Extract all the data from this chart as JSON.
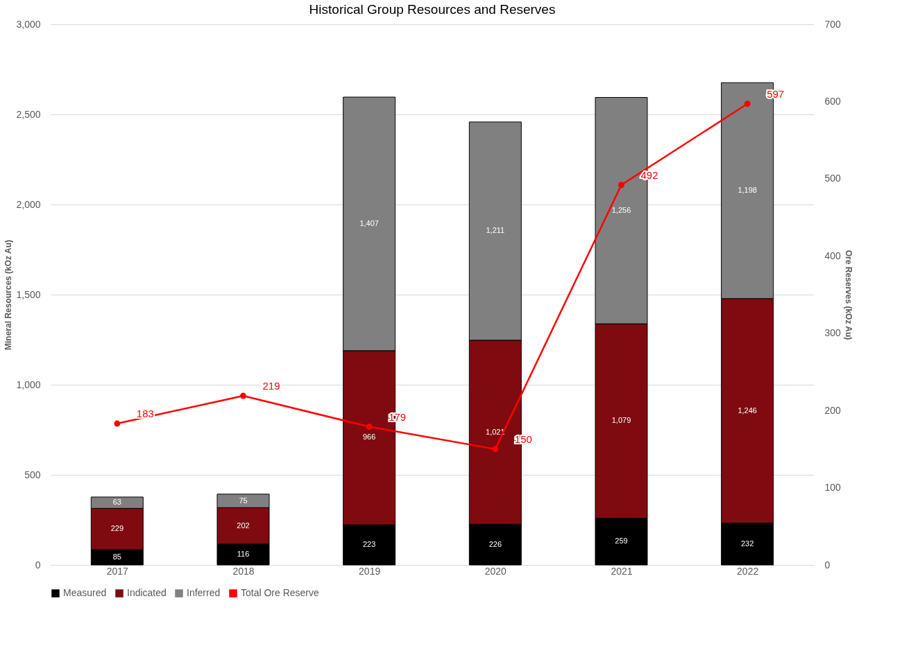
{
  "chart_data": {
    "type": "bar",
    "title": "Historical Group Resources and Reserves",
    "ylabel": "Mineral Resources (kOz Au)",
    "y2label": "Ore Reserves (kOz Au)",
    "categories": [
      "2017",
      "2018",
      "2019",
      "2020",
      "2021",
      "2022"
    ],
    "stacked": true,
    "series": [
      {
        "name": "Measured",
        "color": "#000000",
        "values": [
          85,
          116,
          223,
          226,
          259,
          232
        ],
        "value_labels": [
          "85",
          "116",
          "223",
          "226",
          "259",
          "232"
        ]
      },
      {
        "name": "Indicated",
        "color": "#7f0b10",
        "values": [
          229,
          202,
          966,
          1021,
          1079,
          1246
        ],
        "value_labels": [
          "229",
          "202",
          "966",
          "1,021",
          "1,079",
          "1,246"
        ]
      },
      {
        "name": "Inferred",
        "color": "#808080",
        "values": [
          63,
          75,
          1407,
          1211,
          1256,
          1198
        ],
        "value_labels": [
          "63",
          "75",
          "1,407",
          "1,211",
          "1,256",
          "1,198"
        ]
      },
      {
        "name": "Total Ore Reserve",
        "color": "#ff0000",
        "type": "line",
        "axis": "y2",
        "marker": "circle",
        "values": [
          183,
          219,
          179,
          150,
          492,
          597
        ],
        "value_labels": [
          "183",
          "219",
          "179",
          "150",
          "492",
          "597"
        ]
      }
    ],
    "ylim": [
      0,
      3000
    ],
    "yticks": [
      0,
      {
        "value": 500,
        "label": "500"
      },
      {
        "value": 1000,
        "label": "1,000"
      },
      {
        "value": 1500,
        "label": "1,500"
      },
      {
        "value": 2000,
        "label": "2,000"
      },
      {
        "value": 2500,
        "label": "2,500"
      },
      {
        "value": 3000,
        "label": "3,000"
      }
    ],
    "y2lim": [
      0,
      700
    ],
    "y2ticks": [
      0,
      100,
      200,
      300,
      400,
      500,
      600,
      700
    ],
    "grid": "y",
    "legend": "bottom"
  }
}
